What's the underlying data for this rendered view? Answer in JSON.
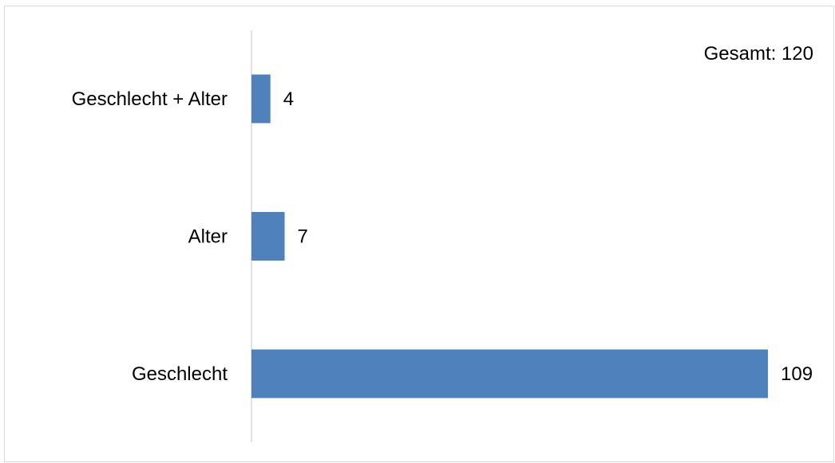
{
  "chart_data": {
    "type": "bar",
    "orientation": "horizontal",
    "categories": [
      "Geschlecht + Alter",
      "Alter",
      "Geschlecht"
    ],
    "values": [
      4,
      7,
      109
    ],
    "annotation": "Gesamt: 120",
    "title": "",
    "xlabel": "",
    "ylabel": "",
    "xlim": [
      0,
      109
    ],
    "grid": false,
    "legend": "none",
    "data_labels": true,
    "colors": {
      "bar": "#4f81bd",
      "axis": "#d9d9d9",
      "text": "#000000"
    }
  }
}
